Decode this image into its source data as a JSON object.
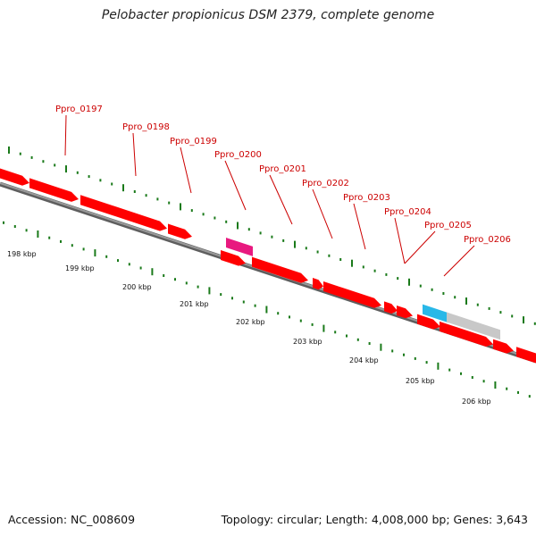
{
  "title": "Pelobacter propionicus DSM 2379, complete genome",
  "footer": {
    "accession": "Accession: NC_008609",
    "topology": "Topology: circular; Length: 4,008,000 bp; Genes: 3,643"
  },
  "colors": {
    "gene": "#ff0000",
    "gene_magenta": "#e8197f",
    "gene_cyan": "#29b8e8",
    "gene_gray": "#c8c8c8",
    "label": "#cc0000",
    "tick": "#1a7a1a",
    "backbone": "#808080"
  },
  "genes": [
    {
      "label": "Ppro_0197"
    },
    {
      "label": "Ppro_0198"
    },
    {
      "label": "Ppro_0199"
    },
    {
      "label": "Ppro_0200"
    },
    {
      "label": "Ppro_0201"
    },
    {
      "label": "Ppro_0202"
    },
    {
      "label": "Ppro_0203"
    },
    {
      "label": "Ppro_0204"
    },
    {
      "label": "Ppro_0205"
    },
    {
      "label": "Ppro_0206"
    }
  ],
  "scale": {
    "unit": "kbp",
    "labels": [
      "198 kbp",
      "199 kbp",
      "200 kbp",
      "201 kbp",
      "202 kbp",
      "203 kbp",
      "204 kbp",
      "205 kbp",
      "206 kbp"
    ]
  }
}
